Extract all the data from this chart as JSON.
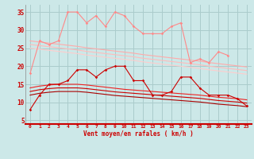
{
  "background_color": "#cce8e8",
  "grid_color": "#aacccc",
  "x_labels": [
    "0",
    "1",
    "2",
    "3",
    "4",
    "5",
    "6",
    "7",
    "8",
    "9",
    "10",
    "11",
    "12",
    "13",
    "14",
    "15",
    "16",
    "17",
    "18",
    "19",
    "20",
    "21",
    "22",
    "23"
  ],
  "xlabel": "Vent moyen/en rafales ( km/h )",
  "ylim": [
    4,
    37
  ],
  "yticks": [
    5,
    10,
    15,
    20,
    25,
    30,
    35
  ],
  "series": [
    {
      "name": "rafales_light",
      "color": "#ff8888",
      "lw": 0.8,
      "marker": "D",
      "ms": 1.8,
      "data": [
        18,
        27,
        26,
        27,
        35,
        35,
        32,
        34,
        31,
        35,
        34,
        31,
        29,
        29,
        29,
        31,
        32,
        21,
        22,
        21,
        24,
        23,
        null,
        null
      ]
    },
    {
      "name": "trend_light1",
      "color": "#ffaaaa",
      "lw": 0.8,
      "marker": null,
      "data": [
        27,
        26.7,
        26.4,
        26.1,
        25.8,
        25.5,
        25.1,
        24.8,
        24.5,
        24.2,
        23.9,
        23.6,
        23.2,
        22.9,
        22.6,
        22.3,
        22.0,
        21.7,
        21.4,
        21.0,
        20.7,
        20.4,
        20.1,
        19.8
      ]
    },
    {
      "name": "trend_light2",
      "color": "#ffbbbb",
      "lw": 0.8,
      "marker": null,
      "data": [
        26,
        25.7,
        25.4,
        25.1,
        24.8,
        24.5,
        24.1,
        23.8,
        23.5,
        23.2,
        22.9,
        22.6,
        22.2,
        21.9,
        21.6,
        21.3,
        21.0,
        20.7,
        20.4,
        20.0,
        19.7,
        19.4,
        19.1,
        18.8
      ]
    },
    {
      "name": "trend_light3",
      "color": "#ffcccc",
      "lw": 0.8,
      "marker": null,
      "data": [
        25,
        24.7,
        24.4,
        24.1,
        23.8,
        23.5,
        23.1,
        22.8,
        22.5,
        22.2,
        21.9,
        21.6,
        21.2,
        20.9,
        20.6,
        20.3,
        20.0,
        19.7,
        19.4,
        19.0,
        18.7,
        18.4,
        18.1,
        17.8
      ]
    },
    {
      "name": "vent_dark",
      "color": "#cc0000",
      "lw": 0.8,
      "marker": "D",
      "ms": 1.8,
      "data": [
        8,
        12,
        15,
        15,
        16,
        19,
        19,
        17,
        19,
        20,
        20,
        16,
        16,
        12,
        12,
        13,
        17,
        17,
        14,
        12,
        12,
        12,
        11,
        9
      ]
    },
    {
      "name": "trend_dark1",
      "color": "#ee2222",
      "lw": 0.8,
      "marker": null,
      "data": [
        14,
        14.5,
        14.8,
        15.0,
        15.0,
        15.0,
        14.8,
        14.5,
        14.2,
        13.9,
        13.6,
        13.4,
        13.2,
        13.0,
        12.8,
        12.6,
        12.4,
        12.2,
        12.0,
        11.7,
        11.4,
        11.2,
        11.0,
        10.7
      ]
    },
    {
      "name": "trend_dark2",
      "color": "#cc0000",
      "lw": 0.8,
      "marker": null,
      "data": [
        13,
        13.5,
        13.8,
        14.0,
        14.0,
        14.0,
        13.8,
        13.5,
        13.2,
        12.9,
        12.7,
        12.5,
        12.3,
        12.1,
        11.9,
        11.7,
        11.5,
        11.3,
        11.1,
        10.8,
        10.5,
        10.3,
        10.1,
        9.8
      ]
    },
    {
      "name": "trend_dark3",
      "color": "#aa0000",
      "lw": 0.8,
      "marker": null,
      "data": [
        12,
        12.5,
        12.8,
        13.0,
        13.0,
        13.0,
        12.8,
        12.5,
        12.2,
        11.9,
        11.7,
        11.5,
        11.3,
        11.1,
        10.9,
        10.7,
        10.5,
        10.3,
        10.1,
        9.8,
        9.5,
        9.3,
        9.1,
        8.8
      ]
    }
  ]
}
